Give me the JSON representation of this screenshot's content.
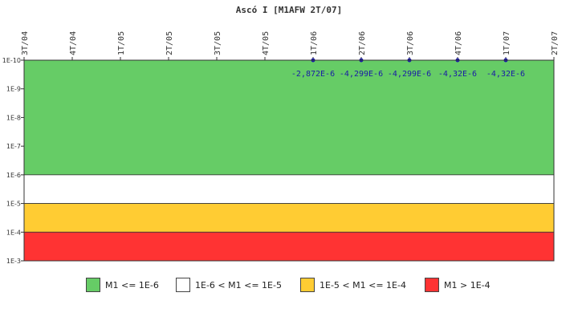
{
  "chart_data": {
    "type": "line",
    "title": "Ascó I [M1AFW 2T/07]",
    "x_ticks": [
      "3T/04",
      "4T/04",
      "1T/05",
      "2T/05",
      "3T/05",
      "4T/05",
      "1T/06",
      "2T/06",
      "3T/06",
      "4T/06",
      "1T/07",
      "2T/07"
    ],
    "y_ticks": [
      "1E-10",
      "1E-9",
      "1E-8",
      "1E-7",
      "1E-6",
      "1E-5",
      "1E-4",
      "1E-3"
    ],
    "y_scale": "log, inverted",
    "ylim": [
      "1E-10",
      "1E-3"
    ],
    "bands": [
      {
        "from_exp": -10,
        "to_exp": -6,
        "color": "#66cc66",
        "label": "M1 <= 1E-6"
      },
      {
        "from_exp": -6,
        "to_exp": -5,
        "color": "#ffffff",
        "label": "1E-6 < M1 <= 1E-5"
      },
      {
        "from_exp": -5,
        "to_exp": -4,
        "color": "#ffcc33",
        "label": "1E-5 < M1 <= 1E-4"
      },
      {
        "from_exp": -4,
        "to_exp": -3,
        "color": "#ff3333",
        "label": "M1 > 1E-4"
      }
    ],
    "series": [
      {
        "x": [
          "1T/06",
          "2T/06",
          "3T/06",
          "4T/06",
          "1T/07"
        ],
        "values": [
          -2.872e-06,
          -4.299e-06,
          -4.299e-06,
          -4.32e-06,
          -4.32e-06
        ],
        "labels": [
          "-2,872E-6",
          "-4,299E-6",
          "-4,299E-6",
          "-4,32E-6",
          "-4,32E-6"
        ],
        "color": "#1a1aa6"
      }
    ],
    "legend_position": "bottom"
  }
}
